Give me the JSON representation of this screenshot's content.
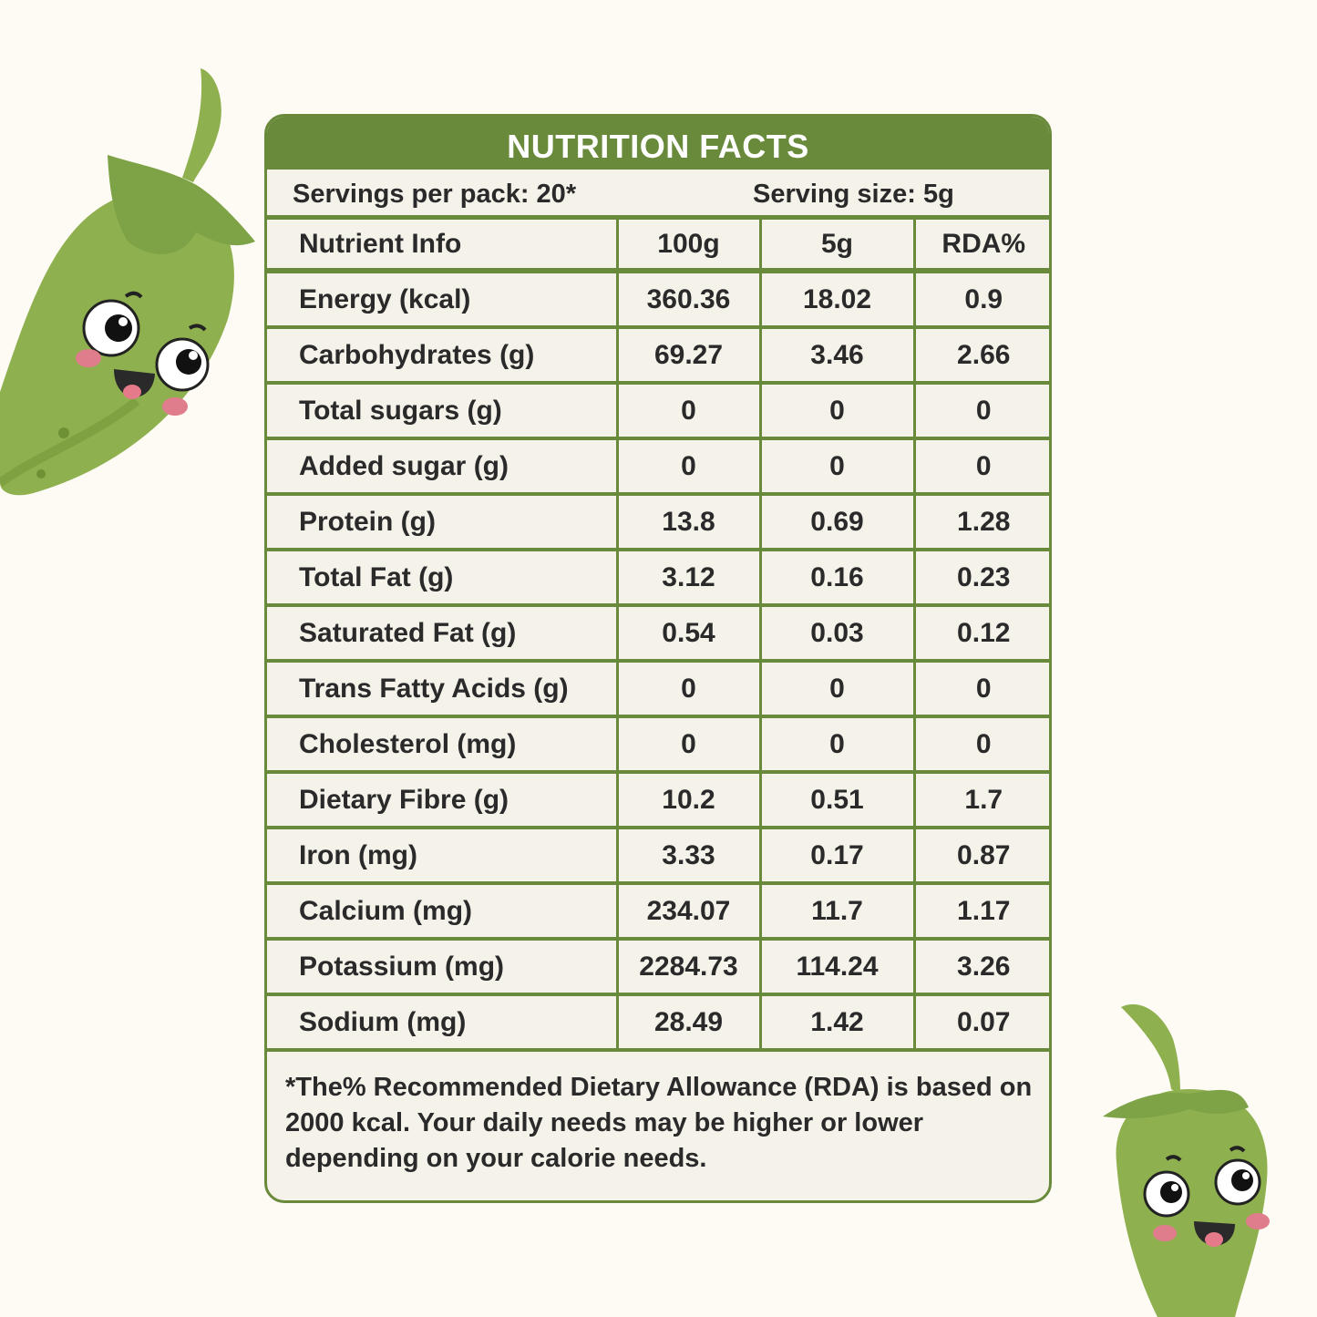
{
  "label": {
    "title": "NUTRITION FACTS",
    "servings_per_pack": "Servings per pack: 20*",
    "serving_size": "Serving size: 5g",
    "columns": [
      "Nutrient Info",
      "100g",
      "5g",
      "RDA%"
    ],
    "rows": [
      [
        "Energy (kcal)",
        "360.36",
        "18.02",
        "0.9"
      ],
      [
        "Carbohydrates (g)",
        "69.27",
        "3.46",
        "2.66"
      ],
      [
        "Total sugars (g)",
        "0",
        "0",
        "0"
      ],
      [
        "Added sugar (g)",
        "0",
        "0",
        "0"
      ],
      [
        "Protein (g)",
        "13.8",
        "0.69",
        "1.28"
      ],
      [
        "Total Fat (g)",
        "3.12",
        "0.16",
        "0.23"
      ],
      [
        "Saturated Fat (g)",
        "0.54",
        "0.03",
        "0.12"
      ],
      [
        "Trans Fatty Acids (g)",
        "0",
        "0",
        "0"
      ],
      [
        "Cholesterol (mg)",
        "0",
        "0",
        "0"
      ],
      [
        "Dietary Fibre (g)",
        "10.2",
        "0.51",
        "1.7"
      ],
      [
        "Iron (mg)",
        "3.33",
        "0.17",
        "0.87"
      ],
      [
        "Calcium (mg)",
        "234.07",
        "11.7",
        "1.17"
      ],
      [
        "Potassium (mg)",
        "2284.73",
        "114.24",
        "3.26"
      ],
      [
        "Sodium (mg)",
        "28.49",
        "1.42",
        "0.07"
      ]
    ],
    "footnote": "*The% Recommended Dietary Allowance (RDA) is based on 2000 kcal. Your daily needs may be higher or lower depending on your calorie needs."
  },
  "colors": {
    "accent_green": "#6a8a3b",
    "chili_green": "#8fb04f",
    "panel_bg": "#f5f2ea",
    "page_bg": "#fdfbf3"
  },
  "illustrations": [
    "chili-mascot-icon",
    "chili-mascot-icon"
  ]
}
